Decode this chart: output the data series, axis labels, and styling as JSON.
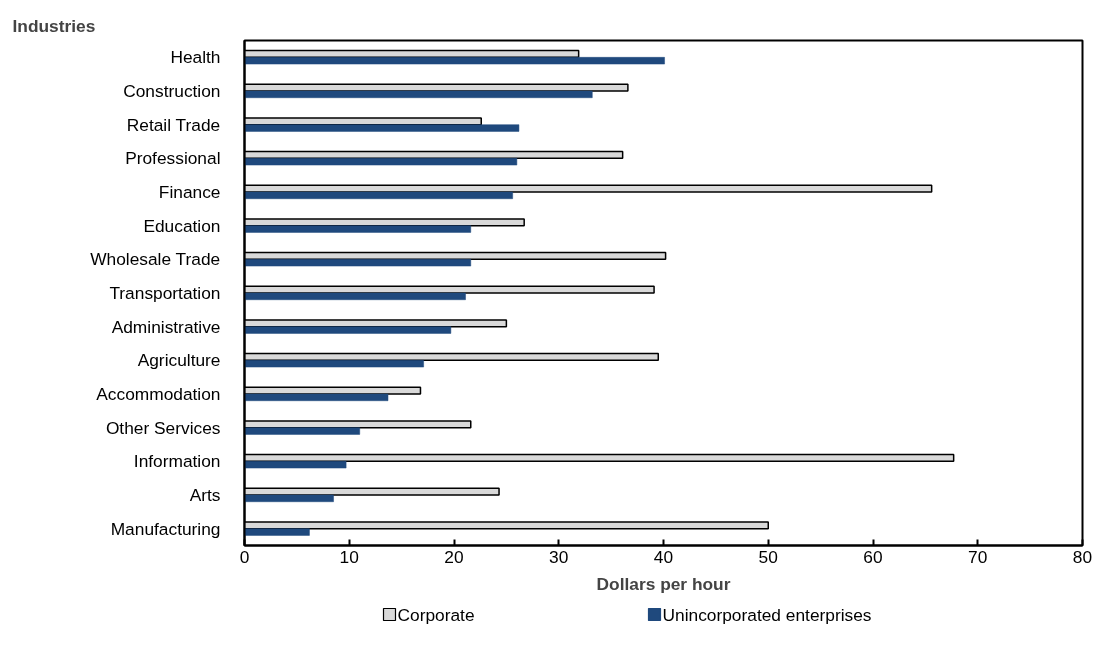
{
  "chart_data": {
    "type": "bar",
    "orientation": "horizontal",
    "title": "Industries",
    "xlabel": "Dollars per hour",
    "categories": [
      "Health",
      "Construction",
      "Retail Trade",
      "Professional",
      "Finance",
      "Education",
      "Wholesale Trade",
      "Transportation",
      "Administrative",
      "Agriculture",
      "Accommodation",
      "Other Services",
      "Information",
      "Arts",
      "Manufacturing"
    ],
    "series": [
      {
        "name": "Corporate",
        "color": "#d9d9d9",
        "values": [
          31.9,
          36.6,
          22.6,
          36.1,
          65.6,
          26.7,
          40.2,
          39.1,
          25.0,
          39.5,
          16.8,
          21.6,
          67.7,
          24.3,
          50.0
        ]
      },
      {
        "name": "Unincorporated enterprises",
        "color": "#1f497d",
        "values": [
          40.1,
          33.2,
          26.2,
          26.0,
          25.6,
          21.6,
          21.6,
          21.1,
          19.7,
          17.1,
          13.7,
          11.0,
          9.7,
          8.5,
          6.2
        ]
      }
    ],
    "xlim": [
      0,
      80
    ],
    "xticks": [
      0,
      10,
      20,
      30,
      40,
      50,
      60,
      70,
      80
    ],
    "grid": false,
    "legend": "bottom"
  }
}
